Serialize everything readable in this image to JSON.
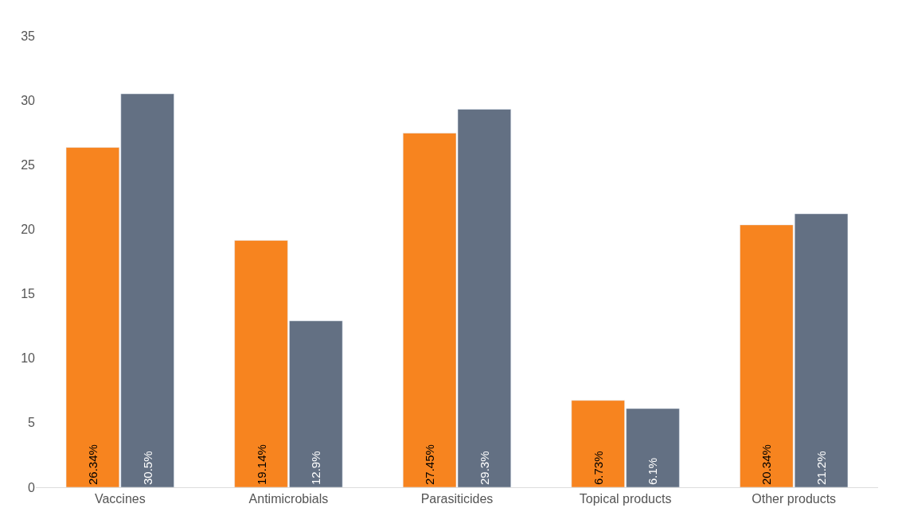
{
  "chart_data": {
    "type": "bar",
    "categories": [
      "Vaccines",
      "Antimicrobials",
      "Parasiticides",
      "Topical products",
      "Other products"
    ],
    "series": [
      {
        "color": "#f7841f",
        "values": [
          26.34,
          19.14,
          27.45,
          6.73,
          20.34
        ],
        "value_labels": [
          "26.34%",
          "19.14%",
          "27.45%",
          "6.73%",
          "20.34%"
        ]
      },
      {
        "color": "#637083",
        "values": [
          30.5,
          12.9,
          29.3,
          6.1,
          21.2
        ],
        "value_labels": [
          "30.5%",
          "12.9%",
          "29.3%",
          "6.1%",
          "21.2%"
        ]
      }
    ],
    "ylim": [
      0,
      35
    ],
    "yticks": [
      0,
      5,
      10,
      15,
      20,
      25,
      30,
      35
    ]
  }
}
